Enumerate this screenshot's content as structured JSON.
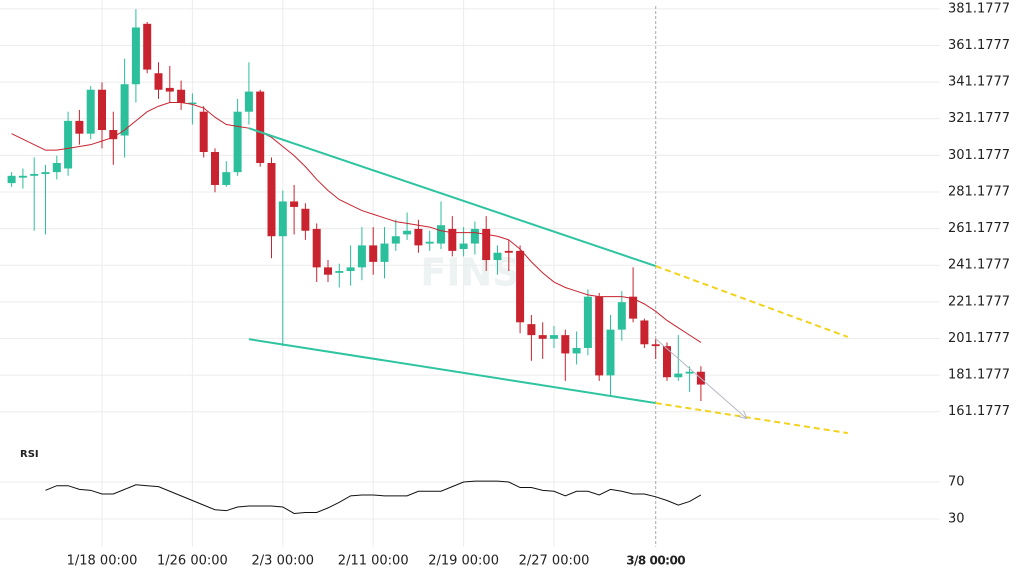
{
  "chart_data": {
    "type": "candlestick",
    "categories": [
      "1/10",
      "1/11",
      "1/12",
      "1/13",
      "1/14",
      "1/15",
      "1/16",
      "1/17",
      "1/18",
      "1/19",
      "1/20",
      "1/21",
      "1/22",
      "1/23",
      "1/24",
      "1/25",
      "1/26",
      "1/27",
      "1/28",
      "1/29",
      "1/30",
      "1/31",
      "2/1",
      "2/2",
      "2/3",
      "2/4",
      "2/5",
      "2/6",
      "2/7",
      "2/8",
      "2/9",
      "2/10",
      "2/11",
      "2/12",
      "2/13",
      "2/14",
      "2/15",
      "2/16",
      "2/17",
      "2/18",
      "2/19",
      "2/20",
      "2/21",
      "2/22",
      "2/23",
      "2/24",
      "2/25",
      "2/26",
      "2/27",
      "2/28",
      "3/1",
      "3/2",
      "3/3",
      "3/4",
      "3/5",
      "3/6",
      "3/7",
      "3/8",
      "3/9",
      "3/10",
      "3/11",
      "3/12"
    ],
    "open": [
      286,
      289,
      290,
      291,
      292,
      294,
      320,
      313,
      337,
      315,
      312,
      340,
      373,
      346,
      338,
      337,
      330,
      325,
      303,
      285,
      292,
      325,
      336,
      297,
      257,
      276,
      272,
      261,
      240,
      237,
      238,
      240,
      252,
      243,
      253,
      258,
      261,
      253,
      253,
      261,
      250,
      253,
      261,
      244,
      249,
      249,
      209,
      203,
      201,
      203,
      193,
      196,
      224,
      181,
      206,
      224,
      211,
      198,
      197,
      180,
      182,
      183
    ],
    "high": [
      292,
      294,
      300,
      296,
      301,
      325,
      326,
      339,
      341,
      325,
      354,
      381,
      374,
      352,
      350,
      342,
      335,
      328,
      305,
      298,
      332,
      352,
      337,
      300,
      282,
      285,
      275,
      264,
      244,
      242,
      252,
      262,
      262,
      262,
      266,
      270,
      266,
      260,
      276,
      268,
      262,
      265,
      268,
      252,
      255,
      252,
      214,
      210,
      208,
      206,
      205,
      228,
      226,
      214,
      227,
      240,
      212,
      201,
      199,
      203,
      186,
      186
    ],
    "low": [
      284,
      283,
      260,
      258,
      288,
      290,
      307,
      310,
      305,
      296,
      300,
      330,
      346,
      332,
      330,
      326,
      318,
      300,
      281,
      284,
      290,
      318,
      295,
      245,
      197,
      258,
      255,
      232,
      232,
      229,
      230,
      233,
      236,
      234,
      249,
      255,
      248,
      249,
      250,
      246,
      246,
      247,
      238,
      236,
      238,
      204,
      189,
      190,
      196,
      178,
      187,
      192,
      178,
      170,
      200,
      210,
      196,
      190,
      178,
      178,
      172,
      167
    ],
    "close": [
      290,
      290,
      291,
      292,
      297,
      320,
      313,
      337,
      315,
      310,
      340,
      371,
      348,
      337,
      336,
      330,
      330,
      303,
      285,
      292,
      325,
      336,
      297,
      257,
      276,
      273,
      260,
      240,
      236,
      238,
      240,
      252,
      243,
      253,
      257,
      260,
      252,
      254,
      263,
      249,
      253,
      261,
      244,
      248,
      248,
      210,
      203,
      201,
      203,
      193,
      196,
      224,
      181,
      206,
      221,
      212,
      198,
      197,
      180,
      182,
      183,
      176
    ],
    "up_color": "#2bbf9c",
    "down_color": "#c9232f",
    "ma": [
      313,
      310,
      307,
      304,
      304,
      305,
      306,
      307,
      309,
      311,
      315,
      320,
      325,
      328,
      330,
      330,
      329,
      327,
      322,
      318,
      317,
      316,
      314,
      311,
      306,
      301,
      295,
      288,
      282,
      277,
      274,
      271,
      269,
      267,
      265,
      264,
      263,
      262,
      260,
      259,
      259,
      259,
      258,
      257,
      255,
      250,
      243,
      237,
      232,
      229,
      227,
      225,
      224,
      224,
      224,
      223,
      220,
      216,
      211,
      207,
      203,
      199
    ],
    "ma_color": "#c9232f",
    "ylim": [
      143,
      386
    ],
    "yticks": [
      381.1777,
      361.1777,
      341.1777,
      321.1777,
      301.1777,
      281.1777,
      261.1777,
      241.1777,
      221.1777,
      201.1777,
      181.1777,
      161.1777
    ],
    "xticks": [
      {
        "value": "1/18",
        "label": "1/18 00:00"
      },
      {
        "value": "1/26",
        "label": "1/26 00:00"
      },
      {
        "value": "2/3",
        "label": "2/3 00:00"
      },
      {
        "value": "2/11",
        "label": "2/11 00:00"
      },
      {
        "value": "2/19",
        "label": "2/19 00:00"
      },
      {
        "value": "2/27",
        "label": "2/27 00:00"
      }
    ],
    "crosshair": {
      "value": "3/8",
      "label": "3/8 00:00"
    },
    "grid": true,
    "watermark": "FINS",
    "trendlines": [
      {
        "color": "#2ec4a0",
        "style": "solid",
        "points": [
          [
            "1/31",
            316
          ],
          [
            "3/8",
            240.7
          ]
        ]
      },
      {
        "color": "#2ec4a0",
        "style": "solid",
        "points": [
          [
            "1/31",
            200.8
          ],
          [
            "3/8",
            165.9
          ]
        ]
      },
      {
        "color": "#f2d21b",
        "style": "dashed",
        "points": [
          [
            "3/8",
            240.7
          ],
          [
            "3/25",
            202
          ]
        ]
      },
      {
        "color": "#f2d21b",
        "style": "dashed",
        "points": [
          [
            "3/8",
            165.9
          ],
          [
            "3/25",
            149.5
          ]
        ]
      },
      {
        "color": "#b8b8c8",
        "style": "arrow",
        "points": [
          [
            "3/8",
            201
          ],
          [
            "3/16",
            157.7
          ]
        ]
      }
    ],
    "rsi": {
      "label": "RSI",
      "color": "#111111",
      "ylim": [
        0,
        100
      ],
      "yticks": [
        70,
        30
      ],
      "values": [
        null,
        null,
        null,
        61,
        66,
        66,
        62,
        61,
        57,
        57,
        62,
        67,
        66,
        65,
        60,
        55,
        50,
        45,
        40,
        39,
        43,
        44,
        44,
        44,
        43,
        36,
        37,
        37,
        42,
        48,
        55,
        56,
        56,
        55,
        55,
        55,
        60,
        60,
        60,
        65,
        70,
        71,
        71,
        71,
        70,
        64,
        64,
        61,
        60,
        55,
        60,
        60,
        56,
        62,
        60,
        57,
        57,
        54,
        50,
        45,
        49,
        56
      ]
    }
  }
}
